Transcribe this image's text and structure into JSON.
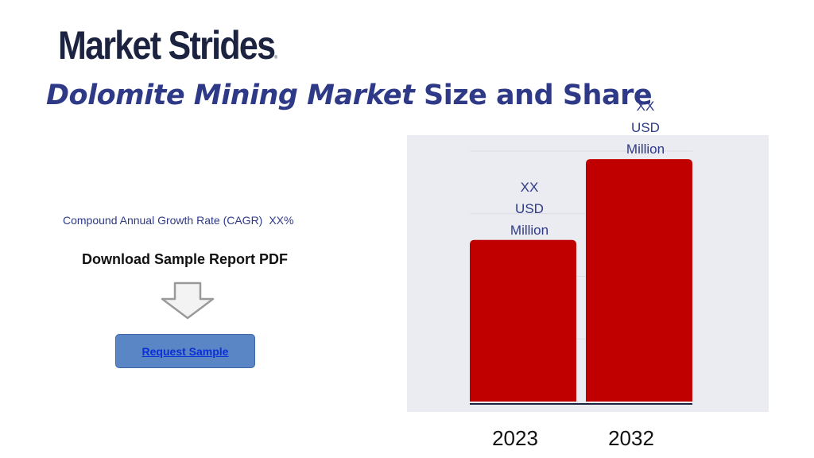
{
  "brand": {
    "logo_text": "Market Strides",
    "logo_mark": "®"
  },
  "page": {
    "title_italic": "Dolomite Mining Market",
    "title_rest": " Size and Share"
  },
  "cagr": {
    "label": "Compound Annual Growth Rate (CAGR)",
    "value": "XX%"
  },
  "download": {
    "label": "Download Sample Report PDF",
    "arrow_icon": "down-arrow-icon"
  },
  "request_button": {
    "label": "Request Sample"
  },
  "colors": {
    "bar": "#c00000",
    "title": "#2e3a87",
    "chart_bg": "#ebebf2",
    "button": "#5b86c5"
  },
  "chart_data": {
    "type": "bar",
    "categories": [
      "2023",
      "2032"
    ],
    "values": [
      6,
      9
    ],
    "data_labels": [
      [
        "XX",
        "USD",
        "Million"
      ],
      [
        "XX",
        "USD",
        "Million"
      ]
    ],
    "ylim": [
      0,
      9.3
    ],
    "grid": true,
    "title": "",
    "xlabel": "",
    "ylabel": ""
  }
}
